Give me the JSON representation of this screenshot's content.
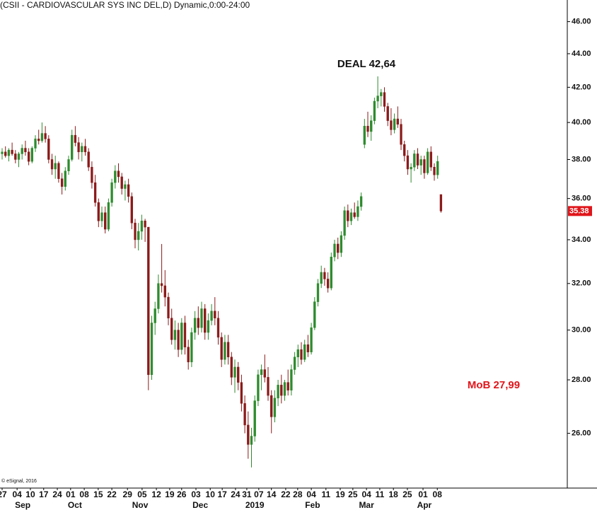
{
  "chart_data": {
    "type": "candlestick",
    "title": "(CSII - CARDIOVASCULAR SYS INC DEL,D) Dynamic,0:00-24:00",
    "copyright": "© eSignal, 2016",
    "annotations": [
      "DEAL 42,64",
      "MoB 27,99"
    ],
    "last_price": 35.38,
    "log_scale": true,
    "grid": false,
    "up_color": "#2e8b2e",
    "down_color": "#8b1a1a",
    "ylim": [
      24.1,
      47.4
    ],
    "yticks": [
      {
        "value": 26,
        "label": "26.00"
      },
      {
        "value": 28,
        "label": "28.00"
      },
      {
        "value": 30,
        "label": "30.00"
      },
      {
        "value": 32,
        "label": "32.00"
      },
      {
        "value": 34,
        "label": "34.00"
      },
      {
        "value": 36,
        "label": "36.00"
      },
      {
        "value": 38,
        "label": "38.00"
      },
      {
        "value": 40,
        "label": "40.00"
      },
      {
        "value": 42,
        "label": "42.00"
      },
      {
        "value": 44,
        "label": "44.00"
      },
      {
        "value": 46,
        "label": "46.00"
      }
    ],
    "xlim": [
      -0.64,
      170
    ],
    "xticks": [
      {
        "value": 0,
        "label": "27"
      },
      {
        "value": 4.5,
        "label": "04"
      },
      {
        "value": 8.5,
        "label": "10"
      },
      {
        "value": 12.5,
        "label": "17"
      },
      {
        "value": 16.6,
        "label": "24"
      },
      {
        "value": 20.6,
        "label": "01"
      },
      {
        "value": 24.7,
        "label": "08"
      },
      {
        "value": 28.9,
        "label": "15"
      },
      {
        "value": 33,
        "label": "22"
      },
      {
        "value": 37.7,
        "label": "29"
      },
      {
        "value": 42.1,
        "label": "05"
      },
      {
        "value": 46.4,
        "label": "12"
      },
      {
        "value": 50.4,
        "label": "19"
      },
      {
        "value": 54,
        "label": "26"
      },
      {
        "value": 58.3,
        "label": "03"
      },
      {
        "value": 62.6,
        "label": "10"
      },
      {
        "value": 66.2,
        "label": "17"
      },
      {
        "value": 70.2,
        "label": "24"
      },
      {
        "value": 73.6,
        "label": "31"
      },
      {
        "value": 77.2,
        "label": "07"
      },
      {
        "value": 81,
        "label": "14"
      },
      {
        "value": 85.3,
        "label": "22"
      },
      {
        "value": 88.9,
        "label": "28"
      },
      {
        "value": 93,
        "label": "04"
      },
      {
        "value": 97.4,
        "label": "11"
      },
      {
        "value": 101.7,
        "label": "19"
      },
      {
        "value": 105.5,
        "label": "25"
      },
      {
        "value": 109.6,
        "label": "04"
      },
      {
        "value": 113.6,
        "label": "11"
      },
      {
        "value": 117.7,
        "label": "18"
      },
      {
        "value": 121.9,
        "label": "25"
      },
      {
        "value": 126.6,
        "label": "01"
      },
      {
        "value": 130.9,
        "label": "08"
      }
    ],
    "month_ticks": [
      {
        "value": 6.2,
        "label": "Sep"
      },
      {
        "value": 21.9,
        "label": "Oct"
      },
      {
        "value": 41.5,
        "label": "Nov"
      },
      {
        "value": 59.6,
        "label": "Dec"
      },
      {
        "value": 76,
        "label": "2019"
      },
      {
        "value": 93.4,
        "label": "Feb"
      },
      {
        "value": 109.6,
        "label": "Mar"
      },
      {
        "value": 127,
        "label": "Apr"
      }
    ],
    "ohlc": [
      [
        38.3,
        38.6,
        38.0,
        38.4
      ],
      [
        38.4,
        38.7,
        38.1,
        38.2
      ],
      [
        38.2,
        38.6,
        37.9,
        38.5
      ],
      [
        38.5,
        38.9,
        38.2,
        38.3
      ],
      [
        38.3,
        38.5,
        37.8,
        38.0
      ],
      [
        38.0,
        38.4,
        37.6,
        38.3
      ],
      [
        38.3,
        38.8,
        38.0,
        38.6
      ],
      [
        38.6,
        39.0,
        38.2,
        38.4
      ],
      [
        38.4,
        38.6,
        37.7,
        37.9
      ],
      [
        37.9,
        38.7,
        37.8,
        38.6
      ],
      [
        38.6,
        39.3,
        38.4,
        39.1
      ],
      [
        39.1,
        39.6,
        38.8,
        39.0
      ],
      [
        39.0,
        40.0,
        38.9,
        39.4
      ],
      [
        39.4,
        39.8,
        38.9,
        39.1
      ],
      [
        39.1,
        39.3,
        37.8,
        38.0
      ],
      [
        38.0,
        38.3,
        37.2,
        37.5
      ],
      [
        37.5,
        38.2,
        37.0,
        37.8
      ],
      [
        37.8,
        37.9,
        36.8,
        37.0
      ],
      [
        37.0,
        37.3,
        36.2,
        36.6
      ],
      [
        36.6,
        37.6,
        36.4,
        37.4
      ],
      [
        37.4,
        38.2,
        37.2,
        38.0
      ],
      [
        38.0,
        39.6,
        37.9,
        39.3
      ],
      [
        39.3,
        39.8,
        38.7,
        38.9
      ],
      [
        38.9,
        39.2,
        38.0,
        38.4
      ],
      [
        38.4,
        38.9,
        37.9,
        38.7
      ],
      [
        38.7,
        39.1,
        38.2,
        38.4
      ],
      [
        38.4,
        38.6,
        37.4,
        37.6
      ],
      [
        37.6,
        37.9,
        36.5,
        36.8
      ],
      [
        36.8,
        37.2,
        35.6,
        35.8
      ],
      [
        35.8,
        36.0,
        34.6,
        34.9
      ],
      [
        34.9,
        35.6,
        34.6,
        35.3
      ],
      [
        35.3,
        35.6,
        34.3,
        34.5
      ],
      [
        34.5,
        36.0,
        34.4,
        35.8
      ],
      [
        35.8,
        37.0,
        35.6,
        36.8
      ],
      [
        36.8,
        37.7,
        36.5,
        37.4
      ],
      [
        37.4,
        37.8,
        36.8,
        37.1
      ],
      [
        37.1,
        37.3,
        36.2,
        36.5
      ],
      [
        36.5,
        36.9,
        35.9,
        36.7
      ],
      [
        36.7,
        37.0,
        35.8,
        36.1
      ],
      [
        36.1,
        36.3,
        34.5,
        34.8
      ],
      [
        34.8,
        35.0,
        33.6,
        34.0
      ],
      [
        34.0,
        34.8,
        33.5,
        34.4
      ],
      [
        34.4,
        35.2,
        34.0,
        34.9
      ],
      [
        34.9,
        35.0,
        33.9,
        34.6
      ],
      [
        34.6,
        34.6,
        27.6,
        28.2
      ],
      [
        28.2,
        30.6,
        28.0,
        30.3
      ],
      [
        30.3,
        31.2,
        29.8,
        30.9
      ],
      [
        30.9,
        32.4,
        30.7,
        32.0
      ],
      [
        32.0,
        33.8,
        31.6,
        31.9
      ],
      [
        31.9,
        32.6,
        31.0,
        31.4
      ],
      [
        31.4,
        31.6,
        30.2,
        30.5
      ],
      [
        30.5,
        30.9,
        29.4,
        29.6
      ],
      [
        29.6,
        30.4,
        29.2,
        30.0
      ],
      [
        30.0,
        30.3,
        28.9,
        29.2
      ],
      [
        29.2,
        30.5,
        29.0,
        30.3
      ],
      [
        30.3,
        30.6,
        29.0,
        29.3
      ],
      [
        29.3,
        29.6,
        28.4,
        28.7
      ],
      [
        28.7,
        30.1,
        28.5,
        29.9
      ],
      [
        29.9,
        30.8,
        29.6,
        30.5
      ],
      [
        30.5,
        31.0,
        29.8,
        30.1
      ],
      [
        30.1,
        31.2,
        29.9,
        30.9
      ],
      [
        30.9,
        31.1,
        29.6,
        29.9
      ],
      [
        29.9,
        30.7,
        29.6,
        30.4
      ],
      [
        30.4,
        31.1,
        30.2,
        30.8
      ],
      [
        30.8,
        31.4,
        30.2,
        30.5
      ],
      [
        30.5,
        30.8,
        29.4,
        29.7
      ],
      [
        29.7,
        29.9,
        28.5,
        28.8
      ],
      [
        28.8,
        29.8,
        28.6,
        29.5
      ],
      [
        29.5,
        29.8,
        28.6,
        28.9
      ],
      [
        28.9,
        29.1,
        27.8,
        28.1
      ],
      [
        28.1,
        28.8,
        27.5,
        28.5
      ],
      [
        28.5,
        28.7,
        27.6,
        27.9
      ],
      [
        27.9,
        28.2,
        26.8,
        27.1
      ],
      [
        27.1,
        27.4,
        26.0,
        26.3
      ],
      [
        26.3,
        26.8,
        25.1,
        25.6
      ],
      [
        25.6,
        26.2,
        24.8,
        25.9
      ],
      [
        25.9,
        27.4,
        25.7,
        27.2
      ],
      [
        27.2,
        28.4,
        27.0,
        28.2
      ],
      [
        28.2,
        28.6,
        27.6,
        28.4
      ],
      [
        28.4,
        29.0,
        27.9,
        28.1
      ],
      [
        28.1,
        28.5,
        27.2,
        27.4
      ],
      [
        27.4,
        27.6,
        26.0,
        26.6
      ],
      [
        26.6,
        27.6,
        26.4,
        27.3
      ],
      [
        27.3,
        28.0,
        27.0,
        27.8
      ],
      [
        27.8,
        28.2,
        27.1,
        27.4
      ],
      [
        27.4,
        28.0,
        27.2,
        27.9
      ],
      [
        27.9,
        28.4,
        27.4,
        27.6
      ],
      [
        27.6,
        28.6,
        27.4,
        28.4
      ],
      [
        28.4,
        29.1,
        28.2,
        28.9
      ],
      [
        28.9,
        29.4,
        28.5,
        29.2
      ],
      [
        29.2,
        29.5,
        28.6,
        28.8
      ],
      [
        28.8,
        29.6,
        28.7,
        29.4
      ],
      [
        29.4,
        29.8,
        28.9,
        29.1
      ],
      [
        29.1,
        30.3,
        29.0,
        30.1
      ],
      [
        30.1,
        31.4,
        30.0,
        31.2
      ],
      [
        31.2,
        32.2,
        31.0,
        32.0
      ],
      [
        32.0,
        32.8,
        31.8,
        32.5
      ],
      [
        32.5,
        32.7,
        31.9,
        32.2
      ],
      [
        32.2,
        32.5,
        31.6,
        31.8
      ],
      [
        31.8,
        33.4,
        31.7,
        33.2
      ],
      [
        33.2,
        34.0,
        33.0,
        33.8
      ],
      [
        33.8,
        34.1,
        33.1,
        33.4
      ],
      [
        33.4,
        34.4,
        33.2,
        34.2
      ],
      [
        34.2,
        35.6,
        34.0,
        35.4
      ],
      [
        35.4,
        35.7,
        34.6,
        34.9
      ],
      [
        34.9,
        35.5,
        34.7,
        35.3
      ],
      [
        35.3,
        35.8,
        35.0,
        35.1
      ],
      [
        35.1,
        35.9,
        34.9,
        35.6
      ],
      [
        35.6,
        36.3,
        35.4,
        36.1
      ],
      [
        38.8,
        40.2,
        38.6,
        39.8
      ],
      [
        39.8,
        40.6,
        39.2,
        39.5
      ],
      [
        39.5,
        40.4,
        39.0,
        40.1
      ],
      [
        40.1,
        41.4,
        39.9,
        41.2
      ],
      [
        41.2,
        42.64,
        40.8,
        41.5
      ],
      [
        41.5,
        41.9,
        40.9,
        41.7
      ],
      [
        41.7,
        42.0,
        40.6,
        40.9
      ],
      [
        40.9,
        41.1,
        39.8,
        40.1
      ],
      [
        40.1,
        40.8,
        39.3,
        39.6
      ],
      [
        39.6,
        40.5,
        39.4,
        40.2
      ],
      [
        40.2,
        40.9,
        39.7,
        39.9
      ],
      [
        39.9,
        40.2,
        38.5,
        38.8
      ],
      [
        38.8,
        39.0,
        37.9,
        38.2
      ],
      [
        38.2,
        38.5,
        37.2,
        37.5
      ],
      [
        37.5,
        37.8,
        36.8,
        37.6
      ],
      [
        37.6,
        38.5,
        37.4,
        38.3
      ],
      [
        38.3,
        38.6,
        37.5,
        37.7
      ],
      [
        37.7,
        38.2,
        37.2,
        38.0
      ],
      [
        38.0,
        38.2,
        37.0,
        37.3
      ],
      [
        37.3,
        38.6,
        37.2,
        38.4
      ],
      [
        38.4,
        38.7,
        37.4,
        37.6
      ],
      [
        37.6,
        37.8,
        36.9,
        37.2
      ],
      [
        37.2,
        38.2,
        37.0,
        37.9
      ],
      [
        36.2,
        36.2,
        35.3,
        35.38
      ]
    ]
  }
}
